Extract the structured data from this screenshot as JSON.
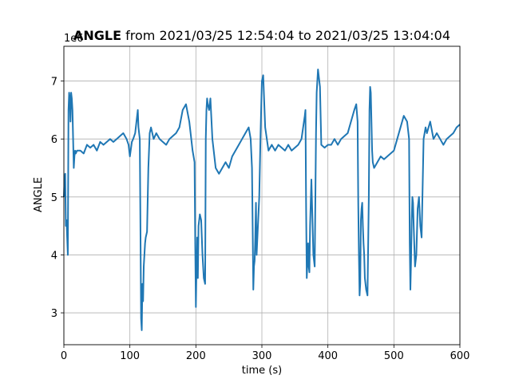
{
  "chart_data": {
    "type": "line",
    "title_bold": "ANGLE",
    "title_rest": " from 2021/03/25 12:54:04 to 2021/03/25 13:04:04",
    "xlabel": "time (s)",
    "ylabel": "ANGLE",
    "y_offset_label": "1e6",
    "xlim": [
      0,
      600
    ],
    "ylim": [
      2.45,
      7.6
    ],
    "x_ticks": [
      "0",
      "100",
      "200",
      "300",
      "400",
      "500",
      "600"
    ],
    "y_ticks": [
      "3",
      "4",
      "5",
      "6",
      "7"
    ],
    "grid": true,
    "series": [
      {
        "color": "#1f77b4",
        "x": [
          0,
          1,
          2,
          3,
          4,
          5,
          6,
          7,
          8,
          9,
          10,
          11,
          12,
          13,
          14,
          15,
          16,
          17,
          18,
          20,
          25,
          30,
          35,
          40,
          45,
          50,
          55,
          60,
          65,
          70,
          75,
          80,
          85,
          90,
          95,
          98,
          100,
          103,
          105,
          108,
          110,
          112,
          113,
          115,
          116,
          117,
          118,
          119,
          120,
          121,
          122,
          123,
          124,
          126,
          128,
          130,
          132,
          134,
          136,
          140,
          145,
          150,
          155,
          160,
          165,
          170,
          175,
          180,
          185,
          190,
          195,
          198,
          199,
          200,
          201,
          202,
          203,
          204,
          205,
          206,
          208,
          210,
          212,
          214,
          215,
          216,
          217,
          218,
          220,
          222,
          225,
          230,
          235,
          240,
          245,
          250,
          255,
          260,
          265,
          270,
          275,
          280,
          283,
          285,
          286,
          287,
          288,
          289,
          290,
          291,
          292,
          294,
          296,
          298,
          300,
          302,
          305,
          310,
          315,
          320,
          325,
          330,
          335,
          340,
          345,
          350,
          355,
          360,
          365,
          366,
          367,
          368,
          369,
          370,
          371,
          372,
          373,
          375,
          378,
          380,
          382,
          383,
          385,
          388,
          390,
          395,
          400,
          405,
          410,
          415,
          420,
          425,
          430,
          435,
          440,
          443,
          445,
          446,
          447,
          448,
          449,
          450,
          451,
          452,
          453,
          454,
          455,
          456,
          458,
          460,
          462,
          463,
          464,
          465,
          466,
          467,
          468,
          470,
          475,
          480,
          485,
          490,
          495,
          500,
          505,
          510,
          515,
          520,
          523,
          524,
          525,
          526,
          527,
          528,
          529,
          530,
          532,
          534,
          536,
          538,
          540,
          542,
          545,
          548,
          550,
          555,
          560,
          565,
          570,
          575,
          580,
          585,
          590,
          595,
          600
        ],
        "y": [
          5.0,
          5.3,
          5.4,
          4.5,
          4.6,
          4.3,
          4.0,
          6.5,
          6.8,
          6.7,
          6.3,
          6.8,
          6.7,
          6.5,
          6.0,
          5.5,
          5.7,
          5.8,
          5.75,
          5.8,
          5.8,
          5.75,
          5.9,
          5.85,
          5.9,
          5.8,
          5.95,
          5.9,
          5.95,
          6.0,
          5.95,
          6.0,
          6.05,
          6.1,
          6.0,
          5.9,
          5.7,
          5.95,
          6.0,
          6.1,
          6.3,
          6.5,
          6.2,
          6.0,
          4.5,
          2.9,
          2.7,
          3.5,
          3.2,
          3.8,
          4.0,
          4.2,
          4.3,
          4.4,
          5.5,
          6.1,
          6.2,
          6.1,
          6.0,
          6.1,
          6.0,
          5.95,
          5.9,
          6.0,
          6.05,
          6.1,
          6.2,
          6.5,
          6.6,
          6.3,
          5.8,
          5.6,
          4.2,
          3.1,
          3.8,
          4.3,
          3.6,
          4.5,
          4.6,
          4.7,
          4.6,
          4.0,
          3.6,
          3.5,
          6.0,
          6.5,
          6.7,
          6.6,
          6.5,
          6.7,
          6.0,
          5.5,
          5.4,
          5.5,
          5.6,
          5.5,
          5.7,
          5.8,
          5.9,
          6.0,
          6.1,
          6.2,
          6.0,
          5.5,
          4.5,
          3.4,
          3.8,
          3.9,
          4.3,
          4.9,
          4.0,
          4.5,
          5.0,
          6.1,
          7.0,
          7.1,
          6.2,
          5.8,
          5.9,
          5.8,
          5.9,
          5.85,
          5.8,
          5.9,
          5.8,
          5.85,
          5.9,
          6.0,
          6.4,
          6.5,
          4.8,
          3.6,
          3.9,
          4.2,
          3.8,
          3.7,
          4.5,
          5.3,
          4.0,
          3.8,
          6.1,
          6.8,
          7.2,
          6.9,
          5.9,
          5.85,
          5.9,
          5.9,
          6.0,
          5.9,
          6.0,
          6.05,
          6.1,
          6.3,
          6.5,
          6.6,
          6.3,
          4.9,
          4.0,
          3.3,
          3.5,
          4.6,
          4.8,
          4.9,
          4.5,
          4.2,
          4.0,
          3.6,
          3.4,
          3.3,
          5.0,
          6.5,
          6.9,
          6.8,
          6.3,
          5.8,
          5.6,
          5.5,
          5.6,
          5.7,
          5.65,
          5.7,
          5.75,
          5.8,
          6.0,
          6.2,
          6.4,
          6.3,
          6.0,
          4.2,
          3.4,
          3.9,
          4.6,
          5.0,
          4.9,
          4.5,
          3.8,
          4.0,
          4.8,
          5.0,
          4.5,
          4.3,
          6.0,
          6.2,
          6.1,
          6.3,
          6.0,
          6.1,
          6.0,
          5.9,
          6.0,
          6.05,
          6.1,
          6.2,
          6.25
        ]
      }
    ]
  }
}
